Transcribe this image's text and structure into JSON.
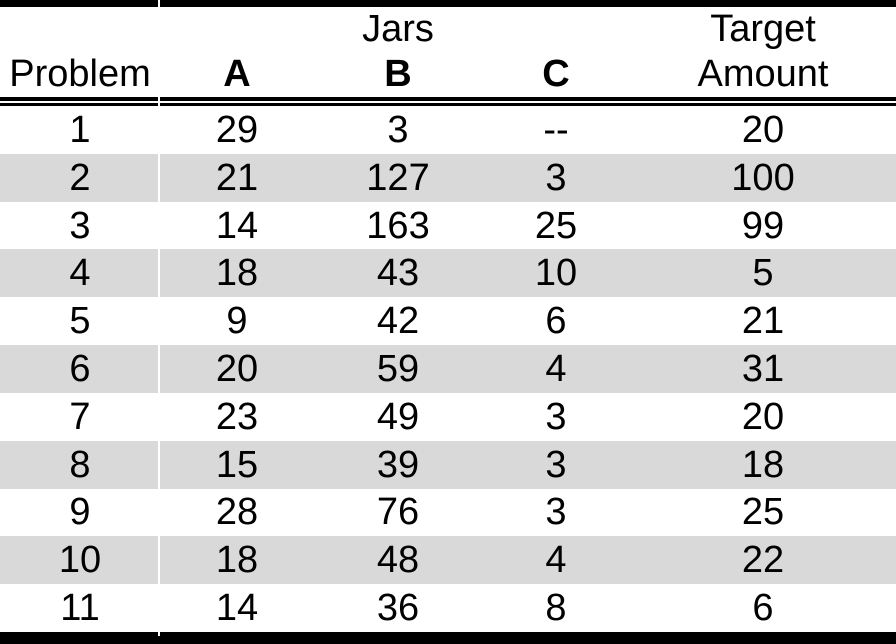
{
  "table": {
    "group_header": {
      "jars": "Jars",
      "target": "Target"
    },
    "column_headers": {
      "problem": "Problem",
      "a": "A",
      "b": "B",
      "c": "C",
      "amount": "Amount"
    },
    "rows": [
      {
        "problem": "1",
        "a": "29",
        "b": "3",
        "c": "--",
        "target": "20"
      },
      {
        "problem": "2",
        "a": "21",
        "b": "127",
        "c": "3",
        "target": "100"
      },
      {
        "problem": "3",
        "a": "14",
        "b": "163",
        "c": "25",
        "target": "99"
      },
      {
        "problem": "4",
        "a": "18",
        "b": "43",
        "c": "10",
        "target": "5"
      },
      {
        "problem": "5",
        "a": "9",
        "b": "42",
        "c": "6",
        "target": "21"
      },
      {
        "problem": "6",
        "a": "20",
        "b": "59",
        "c": "4",
        "target": "31"
      },
      {
        "problem": "7",
        "a": "23",
        "b": "49",
        "c": "3",
        "target": "20"
      },
      {
        "problem": "8",
        "a": "15",
        "b": "39",
        "c": "3",
        "target": "18"
      },
      {
        "problem": "9",
        "a": "28",
        "b": "76",
        "c": "3",
        "target": "25"
      },
      {
        "problem": "10",
        "a": "18",
        "b": "48",
        "c": "4",
        "target": "22"
      },
      {
        "problem": "11",
        "a": "14",
        "b": "36",
        "c": "8",
        "target": "6"
      }
    ]
  },
  "colors": {
    "row_stripe": "#d9d9d9",
    "rule": "#000000",
    "background": "#ffffff",
    "text": "#000000"
  },
  "chart_data": {
    "type": "table",
    "column_group": {
      "label": "Jars",
      "spans": [
        "A",
        "B",
        "C"
      ]
    },
    "columns": [
      "Problem",
      "A",
      "B",
      "C",
      "Target Amount"
    ],
    "rows": [
      [
        1,
        29,
        3,
        "--",
        20
      ],
      [
        2,
        21,
        127,
        3,
        100
      ],
      [
        3,
        14,
        163,
        25,
        99
      ],
      [
        4,
        18,
        43,
        10,
        5
      ],
      [
        5,
        9,
        42,
        6,
        21
      ],
      [
        6,
        20,
        59,
        4,
        31
      ],
      [
        7,
        23,
        49,
        3,
        20
      ],
      [
        8,
        15,
        39,
        3,
        18
      ],
      [
        9,
        28,
        76,
        3,
        25
      ],
      [
        10,
        18,
        48,
        4,
        22
      ],
      [
        11,
        14,
        36,
        8,
        6
      ]
    ],
    "striped_rows": [
      2,
      4,
      6,
      8,
      10
    ],
    "layout": {
      "stripe_color": "#d9d9d9",
      "top_rule": "thick",
      "header_rule": "double",
      "bottom_rule": "thick"
    }
  }
}
